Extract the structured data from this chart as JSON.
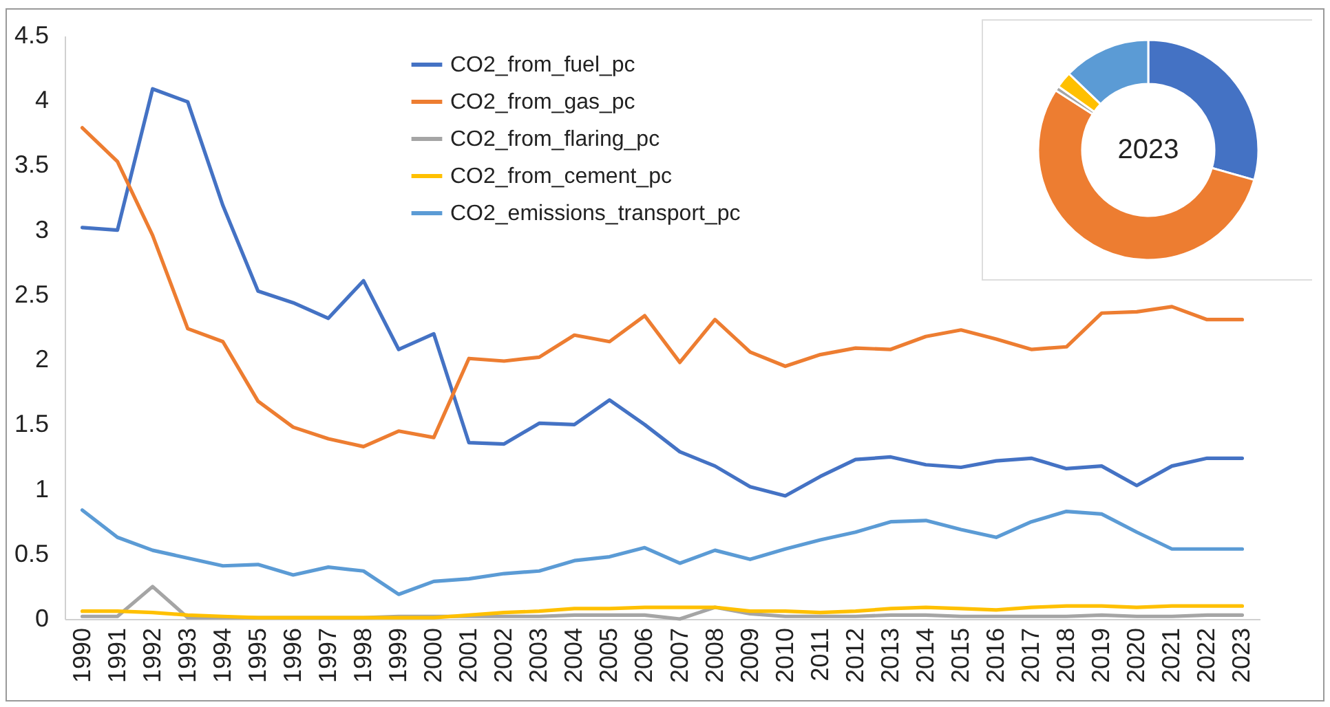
{
  "chart_data": [
    {
      "type": "line",
      "categories": [
        "1990",
        "1991",
        "1992",
        "1993",
        "1994",
        "1995",
        "1996",
        "1997",
        "1998",
        "1999",
        "2000",
        "2001",
        "2002",
        "2003",
        "2004",
        "2005",
        "2006",
        "2007",
        "2008",
        "2009",
        "2010",
        "2011",
        "2012",
        "2013",
        "2014",
        "2015",
        "2016",
        "2017",
        "2018",
        "2019",
        "2020",
        "2021",
        "2022",
        "2023"
      ],
      "series": [
        {
          "name": "CO2_from_fuel_pc",
          "color": "#4472c4",
          "values": [
            3.02,
            3.0,
            4.09,
            3.99,
            3.19,
            2.53,
            2.44,
            2.32,
            2.61,
            2.08,
            2.2,
            1.36,
            1.35,
            1.51,
            1.5,
            1.69,
            1.5,
            1.29,
            1.18,
            1.02,
            0.95,
            1.1,
            1.23,
            1.25,
            1.19,
            1.17,
            1.22,
            1.24,
            1.16,
            1.18,
            1.03,
            1.18,
            1.24,
            1.24
          ]
        },
        {
          "name": "CO2_from_gas_pc",
          "color": "#ed7d31",
          "values": [
            3.79,
            3.53,
            2.96,
            2.24,
            2.14,
            1.68,
            1.48,
            1.39,
            1.33,
            1.45,
            1.4,
            2.01,
            1.99,
            2.02,
            2.19,
            2.14,
            2.34,
            1.98,
            2.31,
            2.06,
            1.95,
            2.04,
            2.09,
            2.08,
            2.18,
            2.23,
            2.16,
            2.08,
            2.1,
            2.36,
            2.37,
            2.41,
            2.31,
            2.31
          ]
        },
        {
          "name": "CO2_from_flaring_pc",
          "color": "#a5a5a5",
          "values": [
            0.02,
            0.02,
            0.25,
            0.01,
            0.01,
            0.01,
            0.01,
            0.01,
            0.01,
            0.02,
            0.02,
            0.02,
            0.02,
            0.02,
            0.03,
            0.03,
            0.03,
            0.0,
            0.09,
            0.04,
            0.02,
            0.02,
            0.02,
            0.03,
            0.03,
            0.02,
            0.02,
            0.02,
            0.02,
            0.03,
            0.02,
            0.02,
            0.03,
            0.03
          ]
        },
        {
          "name": "CO2_from_cement_pc",
          "color": "#ffc000",
          "values": [
            0.06,
            0.06,
            0.05,
            0.03,
            0.02,
            0.01,
            0.01,
            0.01,
            0.01,
            0.01,
            0.01,
            0.03,
            0.05,
            0.06,
            0.08,
            0.08,
            0.09,
            0.09,
            0.09,
            0.06,
            0.06,
            0.05,
            0.06,
            0.08,
            0.09,
            0.08,
            0.07,
            0.09,
            0.1,
            0.1,
            0.09,
            0.1,
            0.1,
            0.1
          ]
        },
        {
          "name": "CO2_emissions_transport_pc",
          "color": "#5b9bd5",
          "values": [
            0.84,
            0.63,
            0.53,
            0.47,
            0.41,
            0.42,
            0.34,
            0.4,
            0.37,
            0.19,
            0.29,
            0.31,
            0.35,
            0.37,
            0.45,
            0.48,
            0.55,
            0.43,
            0.53,
            0.46,
            0.54,
            0.61,
            0.67,
            0.75,
            0.76,
            0.69,
            0.63,
            0.75,
            0.83,
            0.81,
            0.67,
            0.54,
            0.54,
            0.54
          ]
        }
      ],
      "ylim": [
        0,
        4.5
      ],
      "yticks": [
        0,
        0.5,
        1,
        1.5,
        2,
        2.5,
        3,
        3.5,
        4,
        4.5
      ],
      "grid": false,
      "legend": "top",
      "marker": "none",
      "line_style": "solid"
    },
    {
      "type": "donut",
      "title": "2023",
      "categories": [
        null,
        null,
        null,
        null,
        null
      ],
      "values": [
        29.4,
        54.7,
        0.7,
        2.4,
        12.8
      ],
      "colors": [
        "#4472c4",
        "#ed7d31",
        "#a5a5a5",
        "#ffc000",
        "#5b9bd5"
      ],
      "legend": false
    }
  ]
}
